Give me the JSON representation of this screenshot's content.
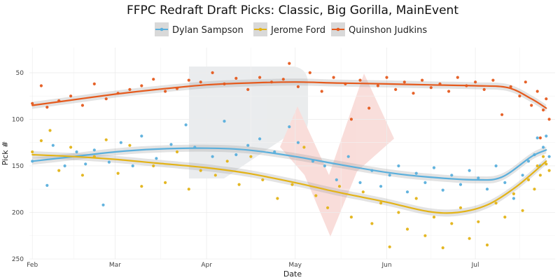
{
  "chart_data": {
    "type": "scatter",
    "title": "FFPC Redraft Draft Picks: Classic, Big Gorilla, MainEvent",
    "xlabel": "Date",
    "ylabel": "Pick #",
    "y_reversed": true,
    "ylim": [
      250,
      23
    ],
    "y_ticks": [
      50,
      100,
      150,
      200,
      250
    ],
    "x_start": "2025-01-31",
    "x_end": "2025-07-28",
    "x_ticks": [
      {
        "label": "Feb",
        "date": "2025-02-01"
      },
      {
        "label": "Mar",
        "date": "2025-03-01"
      },
      {
        "label": "Apr",
        "date": "2025-04-01"
      },
      {
        "label": "May",
        "date": "2025-05-01"
      },
      {
        "label": "Jun",
        "date": "2025-06-01"
      },
      {
        "label": "Jul",
        "date": "2025-07-01"
      }
    ],
    "legend_position": "top",
    "grid": true,
    "series": [
      {
        "name": "Dylan Sampson",
        "color": "#5aafdc",
        "trend": [
          {
            "x": "2025-02-01",
            "y": 145
          },
          {
            "x": "2025-02-15",
            "y": 140
          },
          {
            "x": "2025-03-01",
            "y": 135
          },
          {
            "x": "2025-03-15",
            "y": 132
          },
          {
            "x": "2025-04-01",
            "y": 131
          },
          {
            "x": "2025-04-15",
            "y": 133
          },
          {
            "x": "2025-05-01",
            "y": 140
          },
          {
            "x": "2025-05-15",
            "y": 148
          },
          {
            "x": "2025-06-01",
            "y": 157
          },
          {
            "x": "2025-06-15",
            "y": 162
          },
          {
            "x": "2025-07-01",
            "y": 165
          },
          {
            "x": "2025-07-10",
            "y": 162
          },
          {
            "x": "2025-07-20",
            "y": 140
          },
          {
            "x": "2025-07-25",
            "y": 133
          }
        ],
        "points": [
          {
            "x": "2025-02-01",
            "y": 145
          },
          {
            "x": "2025-02-06",
            "y": 171
          },
          {
            "x": "2025-02-08",
            "y": 128
          },
          {
            "x": "2025-02-12",
            "y": 150
          },
          {
            "x": "2025-02-16",
            "y": 135
          },
          {
            "x": "2025-02-19",
            "y": 148
          },
          {
            "x": "2025-02-22",
            "y": 133
          },
          {
            "x": "2025-02-25",
            "y": 192
          },
          {
            "x": "2025-02-27",
            "y": 146
          },
          {
            "x": "2025-03-03",
            "y": 125
          },
          {
            "x": "2025-03-07",
            "y": 150
          },
          {
            "x": "2025-03-10",
            "y": 118
          },
          {
            "x": "2025-03-15",
            "y": 142
          },
          {
            "x": "2025-03-20",
            "y": 127
          },
          {
            "x": "2025-03-25",
            "y": 106
          },
          {
            "x": "2025-03-28",
            "y": 130
          },
          {
            "x": "2025-04-03",
            "y": 140
          },
          {
            "x": "2025-04-07",
            "y": 102
          },
          {
            "x": "2025-04-11",
            "y": 138
          },
          {
            "x": "2025-04-15",
            "y": 128
          },
          {
            "x": "2025-04-19",
            "y": 121
          },
          {
            "x": "2025-04-24",
            "y": 135
          },
          {
            "x": "2025-04-29",
            "y": 108
          },
          {
            "x": "2025-05-02",
            "y": 125
          },
          {
            "x": "2025-05-07",
            "y": 145
          },
          {
            "x": "2025-05-11",
            "y": 150
          },
          {
            "x": "2025-05-15",
            "y": 165
          },
          {
            "x": "2025-05-19",
            "y": 140
          },
          {
            "x": "2025-05-23",
            "y": 168
          },
          {
            "x": "2025-05-27",
            "y": 155
          },
          {
            "x": "2025-05-30",
            "y": 172
          },
          {
            "x": "2025-06-02",
            "y": 160
          },
          {
            "x": "2025-06-05",
            "y": 150
          },
          {
            "x": "2025-06-08",
            "y": 178
          },
          {
            "x": "2025-06-11",
            "y": 158
          },
          {
            "x": "2025-06-14",
            "y": 168
          },
          {
            "x": "2025-06-17",
            "y": 152
          },
          {
            "x": "2025-06-20",
            "y": 176
          },
          {
            "x": "2025-06-23",
            "y": 160
          },
          {
            "x": "2025-06-26",
            "y": 170
          },
          {
            "x": "2025-06-29",
            "y": 155
          },
          {
            "x": "2025-07-02",
            "y": 163
          },
          {
            "x": "2025-07-05",
            "y": 175
          },
          {
            "x": "2025-07-08",
            "y": 150
          },
          {
            "x": "2025-07-11",
            "y": 168
          },
          {
            "x": "2025-07-14",
            "y": 185
          },
          {
            "x": "2025-07-17",
            "y": 160
          },
          {
            "x": "2025-07-19",
            "y": 145
          },
          {
            "x": "2025-07-21",
            "y": 138
          },
          {
            "x": "2025-07-22",
            "y": 120
          },
          {
            "x": "2025-07-23",
            "y": 150
          },
          {
            "x": "2025-07-24",
            "y": 130
          },
          {
            "x": "2025-07-25",
            "y": 118
          },
          {
            "x": "2025-07-26",
            "y": 140
          }
        ]
      },
      {
        "name": "Jerome Ford",
        "color": "#e3b317",
        "trend": [
          {
            "x": "2025-02-01",
            "y": 138
          },
          {
            "x": "2025-02-15",
            "y": 140
          },
          {
            "x": "2025-03-01",
            "y": 143
          },
          {
            "x": "2025-03-15",
            "y": 147
          },
          {
            "x": "2025-04-01",
            "y": 152
          },
          {
            "x": "2025-04-15",
            "y": 158
          },
          {
            "x": "2025-05-01",
            "y": 168
          },
          {
            "x": "2025-05-15",
            "y": 178
          },
          {
            "x": "2025-06-01",
            "y": 189
          },
          {
            "x": "2025-06-15",
            "y": 199
          },
          {
            "x": "2025-06-25",
            "y": 200
          },
          {
            "x": "2025-07-05",
            "y": 192
          },
          {
            "x": "2025-07-15",
            "y": 172
          },
          {
            "x": "2025-07-25",
            "y": 145
          }
        ],
        "points": [
          {
            "x": "2025-02-01",
            "y": 135
          },
          {
            "x": "2025-02-04",
            "y": 123
          },
          {
            "x": "2025-02-07",
            "y": 112
          },
          {
            "x": "2025-02-10",
            "y": 155
          },
          {
            "x": "2025-02-14",
            "y": 130
          },
          {
            "x": "2025-02-18",
            "y": 160
          },
          {
            "x": "2025-02-22",
            "y": 140
          },
          {
            "x": "2025-02-26",
            "y": 122
          },
          {
            "x": "2025-03-02",
            "y": 158
          },
          {
            "x": "2025-03-06",
            "y": 128
          },
          {
            "x": "2025-03-10",
            "y": 172
          },
          {
            "x": "2025-03-14",
            "y": 150
          },
          {
            "x": "2025-03-18",
            "y": 168
          },
          {
            "x": "2025-03-22",
            "y": 135
          },
          {
            "x": "2025-03-26",
            "y": 175
          },
          {
            "x": "2025-03-30",
            "y": 155
          },
          {
            "x": "2025-04-04",
            "y": 160
          },
          {
            "x": "2025-04-08",
            "y": 145
          },
          {
            "x": "2025-04-12",
            "y": 170
          },
          {
            "x": "2025-04-16",
            "y": 140
          },
          {
            "x": "2025-04-20",
            "y": 165
          },
          {
            "x": "2025-04-25",
            "y": 185
          },
          {
            "x": "2025-04-30",
            "y": 170
          },
          {
            "x": "2025-05-04",
            "y": 130
          },
          {
            "x": "2025-05-08",
            "y": 182
          },
          {
            "x": "2025-05-12",
            "y": 195
          },
          {
            "x": "2025-05-16",
            "y": 172
          },
          {
            "x": "2025-05-20",
            "y": 205
          },
          {
            "x": "2025-05-24",
            "y": 178
          },
          {
            "x": "2025-05-27",
            "y": 212
          },
          {
            "x": "2025-05-30",
            "y": 190
          },
          {
            "x": "2025-06-02",
            "y": 237
          },
          {
            "x": "2025-06-05",
            "y": 200
          },
          {
            "x": "2025-06-08",
            "y": 218
          },
          {
            "x": "2025-06-11",
            "y": 185
          },
          {
            "x": "2025-06-14",
            "y": 225
          },
          {
            "x": "2025-06-17",
            "y": 205
          },
          {
            "x": "2025-06-20",
            "y": 238
          },
          {
            "x": "2025-06-23",
            "y": 212
          },
          {
            "x": "2025-06-26",
            "y": 195
          },
          {
            "x": "2025-06-29",
            "y": 228
          },
          {
            "x": "2025-07-02",
            "y": 210
          },
          {
            "x": "2025-07-05",
            "y": 235
          },
          {
            "x": "2025-07-08",
            "y": 190
          },
          {
            "x": "2025-07-11",
            "y": 205
          },
          {
            "x": "2025-07-14",
            "y": 180
          },
          {
            "x": "2025-07-17",
            "y": 198
          },
          {
            "x": "2025-07-19",
            "y": 165
          },
          {
            "x": "2025-07-21",
            "y": 175
          },
          {
            "x": "2025-07-22",
            "y": 150
          },
          {
            "x": "2025-07-23",
            "y": 160
          },
          {
            "x": "2025-07-24",
            "y": 140
          },
          {
            "x": "2025-07-25",
            "y": 148
          },
          {
            "x": "2025-07-26",
            "y": 155
          }
        ]
      },
      {
        "name": "Quinshon Judkins",
        "color": "#e55a1d",
        "trend": [
          {
            "x": "2025-02-01",
            "y": 85
          },
          {
            "x": "2025-02-15",
            "y": 79
          },
          {
            "x": "2025-03-01",
            "y": 73
          },
          {
            "x": "2025-03-15",
            "y": 68
          },
          {
            "x": "2025-04-01",
            "y": 63
          },
          {
            "x": "2025-04-15",
            "y": 61
          },
          {
            "x": "2025-05-01",
            "y": 60
          },
          {
            "x": "2025-05-15",
            "y": 61
          },
          {
            "x": "2025-06-01",
            "y": 62
          },
          {
            "x": "2025-06-15",
            "y": 63
          },
          {
            "x": "2025-07-01",
            "y": 64
          },
          {
            "x": "2025-07-12",
            "y": 66
          },
          {
            "x": "2025-07-20",
            "y": 78
          },
          {
            "x": "2025-07-25",
            "y": 88
          }
        ],
        "points": [
          {
            "x": "2025-02-01",
            "y": 83
          },
          {
            "x": "2025-02-04",
            "y": 64
          },
          {
            "x": "2025-02-06",
            "y": 87
          },
          {
            "x": "2025-02-10",
            "y": 80
          },
          {
            "x": "2025-02-14",
            "y": 75
          },
          {
            "x": "2025-02-18",
            "y": 85
          },
          {
            "x": "2025-02-22",
            "y": 62
          },
          {
            "x": "2025-02-26",
            "y": 78
          },
          {
            "x": "2025-03-02",
            "y": 72
          },
          {
            "x": "2025-03-06",
            "y": 68
          },
          {
            "x": "2025-03-10",
            "y": 64
          },
          {
            "x": "2025-03-14",
            "y": 57
          },
          {
            "x": "2025-03-18",
            "y": 70
          },
          {
            "x": "2025-03-22",
            "y": 67
          },
          {
            "x": "2025-03-26",
            "y": 58
          },
          {
            "x": "2025-03-30",
            "y": 60
          },
          {
            "x": "2025-04-03",
            "y": 50
          },
          {
            "x": "2025-04-07",
            "y": 62
          },
          {
            "x": "2025-04-11",
            "y": 56
          },
          {
            "x": "2025-04-15",
            "y": 68
          },
          {
            "x": "2025-04-19",
            "y": 55
          },
          {
            "x": "2025-04-23",
            "y": 60
          },
          {
            "x": "2025-04-27",
            "y": 57
          },
          {
            "x": "2025-04-29",
            "y": 40
          },
          {
            "x": "2025-05-02",
            "y": 65
          },
          {
            "x": "2025-05-06",
            "y": 50
          },
          {
            "x": "2025-05-10",
            "y": 70
          },
          {
            "x": "2025-05-14",
            "y": 55
          },
          {
            "x": "2025-05-18",
            "y": 62
          },
          {
            "x": "2025-05-20",
            "y": 100
          },
          {
            "x": "2025-05-23",
            "y": 58
          },
          {
            "x": "2025-05-26",
            "y": 88
          },
          {
            "x": "2025-05-29",
            "y": 64
          },
          {
            "x": "2025-06-01",
            "y": 55
          },
          {
            "x": "2025-06-04",
            "y": 68
          },
          {
            "x": "2025-06-07",
            "y": 60
          },
          {
            "x": "2025-06-10",
            "y": 72
          },
          {
            "x": "2025-06-13",
            "y": 58
          },
          {
            "x": "2025-06-16",
            "y": 66
          },
          {
            "x": "2025-06-19",
            "y": 62
          },
          {
            "x": "2025-06-22",
            "y": 70
          },
          {
            "x": "2025-06-25",
            "y": 55
          },
          {
            "x": "2025-06-28",
            "y": 64
          },
          {
            "x": "2025-07-01",
            "y": 60
          },
          {
            "x": "2025-07-04",
            "y": 68
          },
          {
            "x": "2025-07-07",
            "y": 58
          },
          {
            "x": "2025-07-10",
            "y": 95
          },
          {
            "x": "2025-07-13",
            "y": 65
          },
          {
            "x": "2025-07-16",
            "y": 75
          },
          {
            "x": "2025-07-18",
            "y": 60
          },
          {
            "x": "2025-07-20",
            "y": 85
          },
          {
            "x": "2025-07-22",
            "y": 70
          },
          {
            "x": "2025-07-23",
            "y": 120
          },
          {
            "x": "2025-07-24",
            "y": 90
          },
          {
            "x": "2025-07-25",
            "y": 78
          },
          {
            "x": "2025-07-26",
            "y": 100
          }
        ]
      }
    ]
  }
}
